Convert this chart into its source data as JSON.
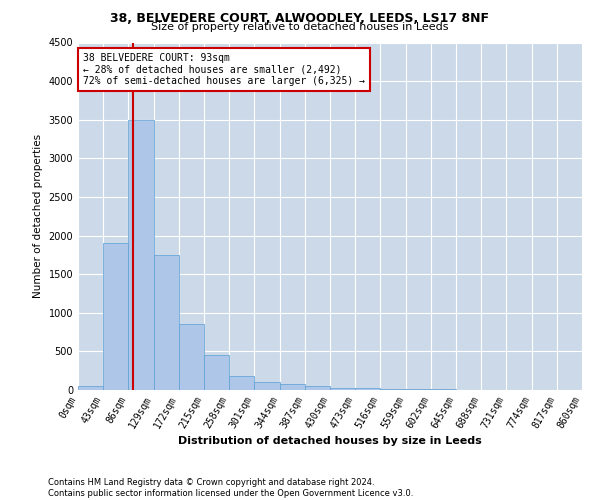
{
  "title_line1": "38, BELVEDERE COURT, ALWOODLEY, LEEDS, LS17 8NF",
  "title_line2": "Size of property relative to detached houses in Leeds",
  "xlabel": "Distribution of detached houses by size in Leeds",
  "ylabel": "Number of detached properties",
  "annotation_title": "38 BELVEDERE COURT: 93sqm",
  "annotation_line2": "← 28% of detached houses are smaller (2,492)",
  "annotation_line3": "72% of semi-detached houses are larger (6,325) →",
  "footer_line1": "Contains HM Land Registry data © Crown copyright and database right 2024.",
  "footer_line2": "Contains public sector information licensed under the Open Government Licence v3.0.",
  "property_size_sqm": 93,
  "bin_edges": [
    0,
    43,
    86,
    129,
    172,
    215,
    258,
    301,
    344,
    387,
    430,
    473,
    516,
    559,
    602,
    645,
    688,
    731,
    774,
    817,
    860
  ],
  "bar_values": [
    50,
    1900,
    3500,
    1750,
    850,
    450,
    175,
    110,
    80,
    55,
    30,
    20,
    15,
    10,
    8,
    5,
    4,
    3,
    2,
    2
  ],
  "bar_color": "#aec6e8",
  "bar_edge_color": "#5a9fd4",
  "redline_color": "#cc0000",
  "annotation_box_edge": "#cc0000",
  "background_color": "#ffffff",
  "grid_color": "#ccd9e8",
  "ylim": [
    0,
    4500
  ],
  "yticks": [
    0,
    500,
    1000,
    1500,
    2000,
    2500,
    3000,
    3500,
    4000,
    4500
  ],
  "title_fontsize1": 9,
  "title_fontsize2": 8,
  "ylabel_fontsize": 7.5,
  "xlabel_fontsize": 8,
  "annotation_fontsize": 7,
  "tick_fontsize": 7,
  "footer_fontsize": 6
}
